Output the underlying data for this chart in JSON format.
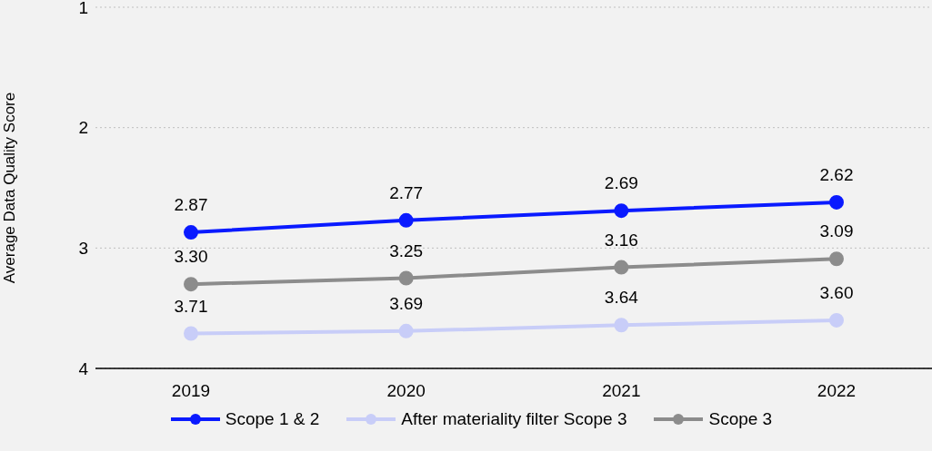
{
  "chart_data": {
    "type": "line",
    "ylabel": "Average Data Quality Score",
    "categories": [
      "2019",
      "2020",
      "2021",
      "2022"
    ],
    "series": [
      {
        "name": "Scope 1 & 2",
        "color": "#0a1aff",
        "values": [
          2.87,
          2.77,
          2.69,
          2.62
        ],
        "value_labels": [
          "2.87",
          "2.77",
          "2.69",
          "2.62"
        ]
      },
      {
        "name": "After materiality filter Scope 3",
        "color": "#c8cdf8",
        "values": [
          3.71,
          3.69,
          3.64,
          3.6
        ],
        "value_labels": [
          "3.71",
          "3.69",
          "3.64",
          "3.60"
        ]
      },
      {
        "name": "Scope 3",
        "color": "#8c8c8c",
        "values": [
          3.3,
          3.25,
          3.16,
          3.09
        ],
        "value_labels": [
          "3.30",
          "3.25",
          "3.16",
          "3.09"
        ]
      }
    ],
    "ylim": [
      4,
      1
    ],
    "yticks": [
      1,
      2,
      3,
      4
    ],
    "grid": "y",
    "legend": "bottom",
    "marker": "circle",
    "line_style": "solid"
  }
}
